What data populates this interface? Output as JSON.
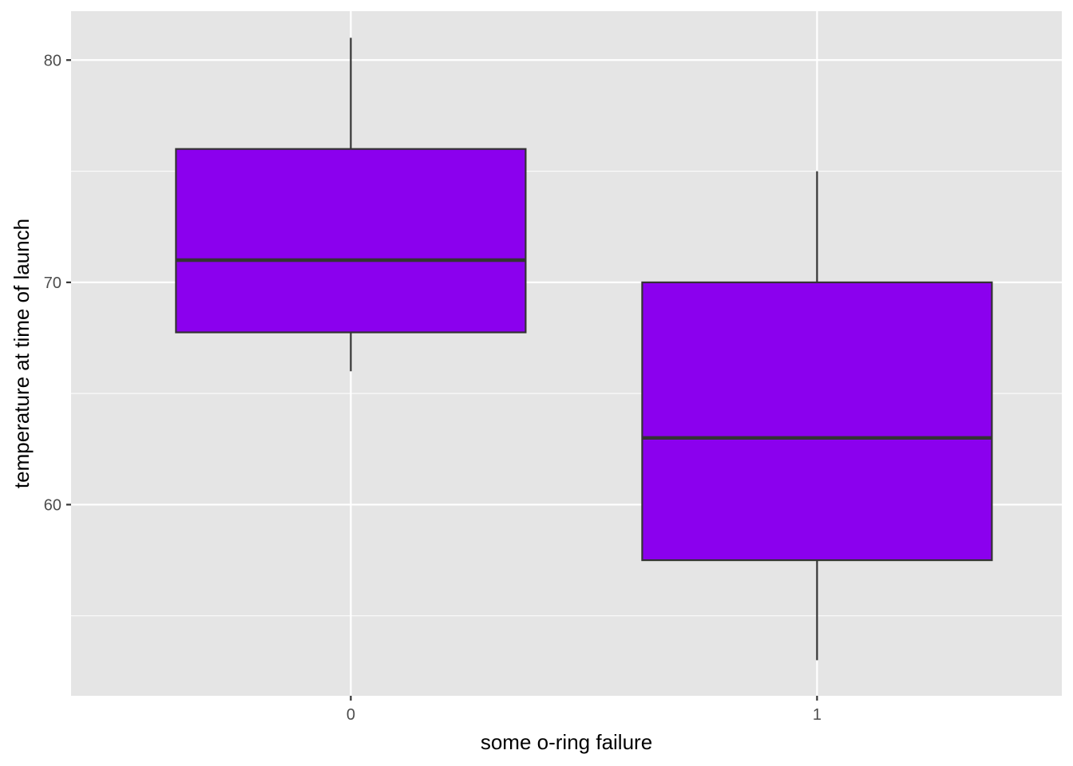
{
  "chart_data": {
    "type": "box",
    "xlabel": "some o-ring failure",
    "ylabel": "temperature at time of launch",
    "categories": [
      "0",
      "1"
    ],
    "ylim": [
      51.4,
      82.2
    ],
    "y_ticks": [
      60,
      70,
      80
    ],
    "y_minor_ticks": [
      55,
      65,
      75
    ],
    "grid": true,
    "legend": "none",
    "fill_color": "#8B00EE",
    "panel_background": "#E5E5E5",
    "boxes": [
      {
        "category": "0",
        "whisker_low": 66,
        "q1": 67.75,
        "median": 71,
        "q3": 76,
        "whisker_high": 81
      },
      {
        "category": "1",
        "whisker_low": 53,
        "q1": 57.5,
        "median": 63,
        "q3": 70,
        "whisker_high": 75
      }
    ]
  }
}
